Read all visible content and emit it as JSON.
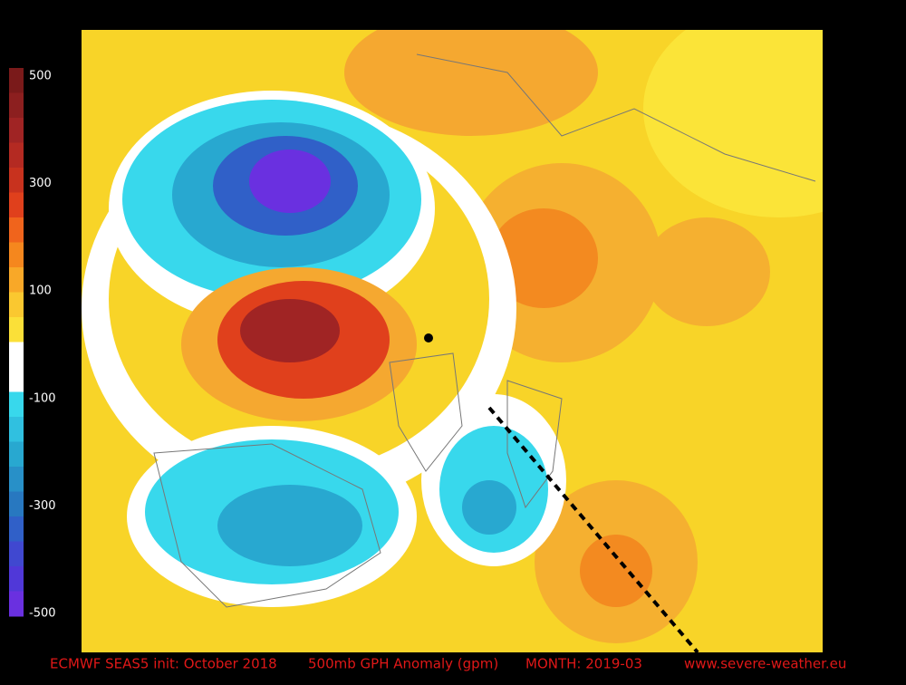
{
  "colorbar": {
    "labels": [
      500,
      300,
      100,
      -100,
      -300,
      -500
    ],
    "colors": [
      "#7a1a1a",
      "#8c1f1f",
      "#a02424",
      "#b42a22",
      "#c8321e",
      "#e0401c",
      "#f0641c",
      "#f5871e",
      "#f8a828",
      "#fac830",
      "#fbe038",
      "#ffffff",
      "#ffffff",
      "#38d8ec",
      "#30c0e0",
      "#28a8d0",
      "#2890c8",
      "#2878c0",
      "#3060c8",
      "#4048d0",
      "#5038d8",
      "#6a30e0"
    ]
  },
  "footer": {
    "model": "ECMWF SEAS5 init: October 2018",
    "field": "500mb GPH Anomaly (gpm)",
    "month": "MONTH: 2019-03",
    "site": "www.severe-weather.eu"
  }
}
